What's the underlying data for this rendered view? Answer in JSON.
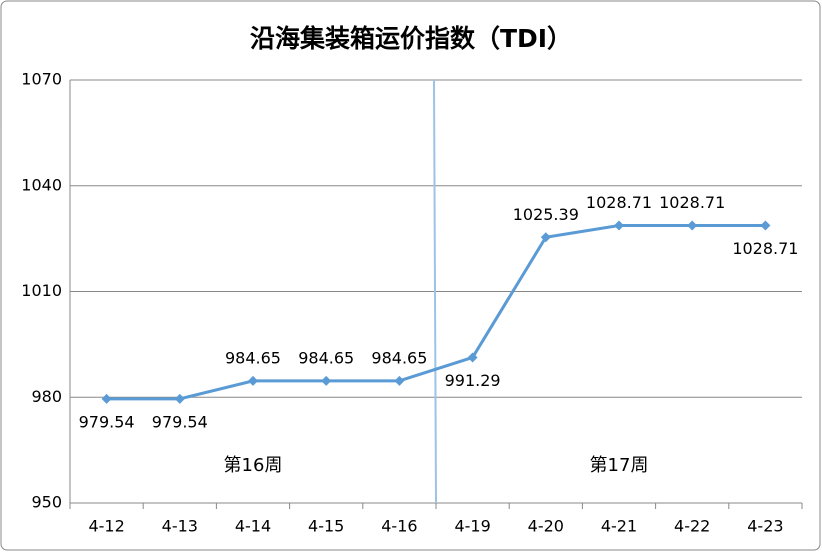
{
  "chart_data": {
    "type": "line",
    "title": "沿海集装箱运价指数（TDI）",
    "categories": [
      "4-12",
      "4-13",
      "4-14",
      "4-15",
      "4-16",
      "4-19",
      "4-20",
      "4-21",
      "4-22",
      "4-23"
    ],
    "values": [
      979.54,
      979.54,
      984.65,
      984.65,
      984.65,
      991.29,
      1025.39,
      1028.71,
      1028.71,
      1028.71
    ],
    "color": "#5b9bd5",
    "ylim": [
      950,
      1070
    ],
    "yticks": [
      950,
      980,
      1010,
      1040,
      1070
    ],
    "grid": true,
    "annotations": [
      "第16周",
      "第17周"
    ]
  }
}
